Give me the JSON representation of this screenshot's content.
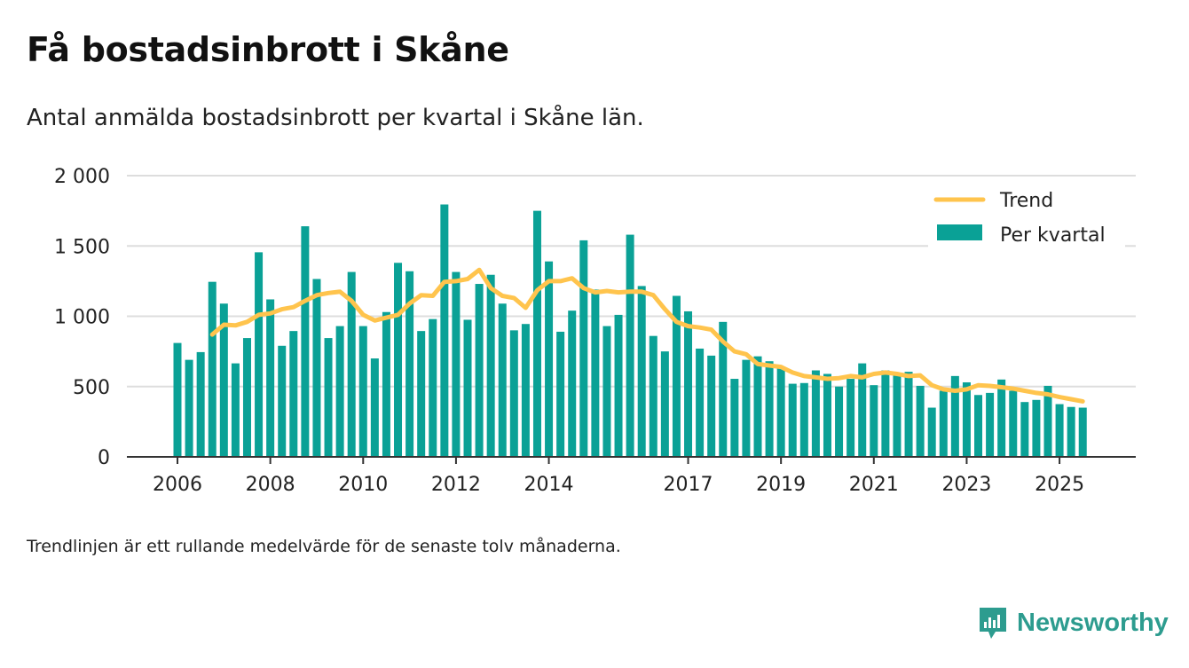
{
  "title": "Få bostadsinbrott i Skåne",
  "subtitle": "Antal anmälda bostadsinbrott per kvartal i Skåne län.",
  "footnote": "Trendlinjen är ett rullande medelvärde för de senaste tolv månaderna.",
  "brand": {
    "name": "Newsworthy",
    "icon": "newsworthy-logo-icon"
  },
  "colors": {
    "bars": "#0aa196",
    "trend": "#ffc44d",
    "grid": "#dddddd",
    "axis": "#333333"
  },
  "chart_data": {
    "type": "bar",
    "title": "Få bostadsinbrott i Skåne",
    "ylim": [
      0,
      2000
    ],
    "yticks": [
      0,
      500,
      1000,
      1500,
      2000
    ],
    "ytick_labels": [
      "0",
      "500",
      "1 000",
      "1 500",
      "2 000"
    ],
    "xtick_labels": [
      "2006",
      "2008",
      "2010",
      "2012",
      "2014",
      "2017",
      "2019",
      "2021",
      "2023",
      "2025"
    ],
    "xtick_positions": [
      0.5,
      8.5,
      16.5,
      24.5,
      32.5,
      44.5,
      52.5,
      60.5,
      68.5,
      76.5
    ],
    "legend": [
      "Trend",
      "Per kvartal"
    ],
    "legend_position": "top-right",
    "series": [
      {
        "name": "Per kvartal",
        "type": "bar",
        "values": [
          810,
          690,
          745,
          1245,
          1090,
          665,
          845,
          1455,
          1120,
          790,
          895,
          1640,
          1265,
          845,
          930,
          1315,
          930,
          700,
          1030,
          1380,
          1320,
          895,
          980,
          1795,
          1315,
          975,
          1230,
          1295,
          1090,
          900,
          945,
          1750,
          1390,
          890,
          1040,
          1540,
          1190,
          930,
          1010,
          1580,
          1215,
          860,
          750,
          1145,
          1035,
          770,
          720,
          960,
          555,
          690,
          715,
          680,
          635,
          520,
          525,
          615,
          590,
          500,
          555,
          665,
          510,
          615,
          595,
          605,
          505,
          350,
          470,
          575,
          530,
          440,
          455,
          550,
          470,
          390,
          405,
          505,
          375,
          355,
          350
        ]
      },
      {
        "name": "Trend",
        "type": "line",
        "values": [
          null,
          null,
          null,
          870,
          940,
          935,
          960,
          1010,
          1020,
          1050,
          1065,
          1110,
          1150,
          1165,
          1175,
          1110,
          1010,
          970,
          990,
          1010,
          1090,
          1150,
          1145,
          1245,
          1250,
          1265,
          1330,
          1200,
          1145,
          1130,
          1060,
          1185,
          1250,
          1250,
          1270,
          1200,
          1170,
          1180,
          1170,
          1175,
          1175,
          1150,
          1050,
          960,
          930,
          920,
          905,
          820,
          750,
          730,
          660,
          650,
          640,
          600,
          575,
          565,
          555,
          560,
          575,
          565,
          590,
          600,
          590,
          575,
          580,
          510,
          480,
          470,
          480,
          510,
          505,
          495,
          485,
          470,
          455,
          445,
          425,
          410,
          395
        ]
      }
    ]
  }
}
